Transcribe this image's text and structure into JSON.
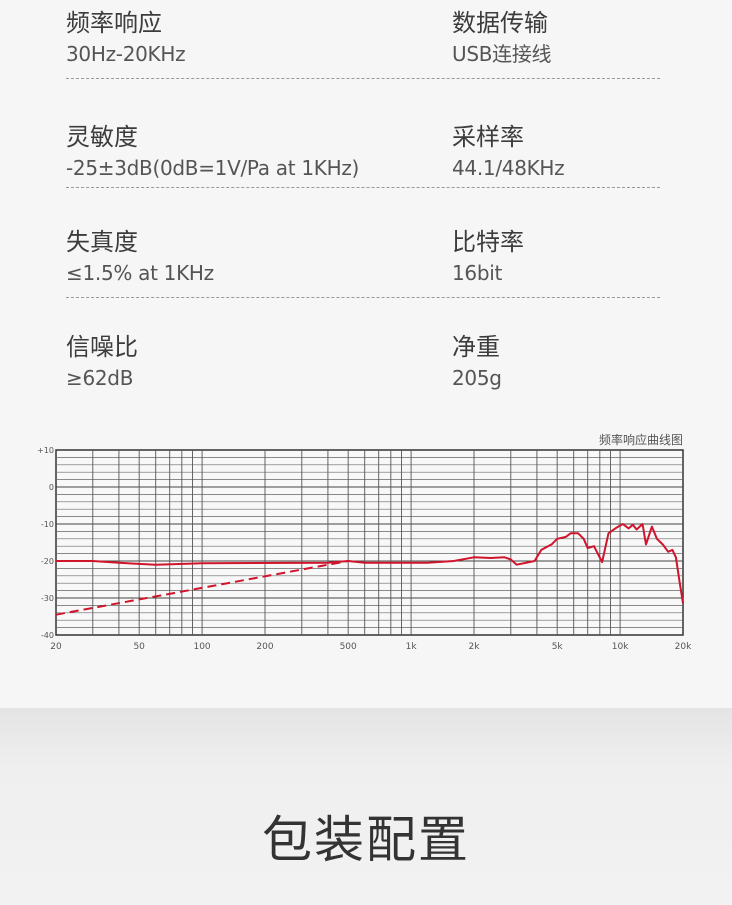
{
  "specs": [
    {
      "left": {
        "label": "频率响应",
        "value": "30Hz-20KHz"
      },
      "right": {
        "label": "数据传输",
        "value": "USB连接线"
      }
    },
    {
      "left": {
        "label": "灵敏度",
        "value": "-25±3dB(0dB=1V/Pa at 1KHz)"
      },
      "right": {
        "label": "采样率",
        "value": "44.1/48KHz"
      }
    },
    {
      "left": {
        "label": "失真度",
        "value": "≤1.5% at 1KHz"
      },
      "right": {
        "label": "比特率",
        "value": "16bit"
      }
    },
    {
      "left": {
        "label": "信噪比",
        "value": "≥62dB"
      },
      "right": {
        "label": "净重",
        "value": "205g"
      }
    }
  ],
  "section_title": "包装配置",
  "chart_data": {
    "type": "line",
    "title": "频率响应曲线图",
    "x_scale": "log",
    "xlim": [
      20,
      20000
    ],
    "ylim": [
      -40,
      10
    ],
    "grid": true,
    "x_ticks": [
      {
        "v": 20,
        "t": "20"
      },
      {
        "v": 50,
        "t": "50"
      },
      {
        "v": 100,
        "t": "100"
      },
      {
        "v": 200,
        "t": "200"
      },
      {
        "v": 500,
        "t": "500"
      },
      {
        "v": 1000,
        "t": "1k"
      },
      {
        "v": 2000,
        "t": "2k"
      },
      {
        "v": 5000,
        "t": "5k"
      },
      {
        "v": 10000,
        "t": "10k"
      },
      {
        "v": 20000,
        "t": "20k"
      }
    ],
    "y_ticks": [
      {
        "v": 10,
        "t": "+10"
      },
      {
        "v": 0,
        "t": "0"
      },
      {
        "v": -10,
        "t": "-10"
      },
      {
        "v": -20,
        "t": "-20"
      },
      {
        "v": -30,
        "t": "-30"
      },
      {
        "v": -40,
        "t": "-40"
      }
    ],
    "series": [
      {
        "style": "solid",
        "color": "#d0142c",
        "points": [
          [
            20,
            -20
          ],
          [
            30,
            -20
          ],
          [
            40,
            -20.5
          ],
          [
            60,
            -21
          ],
          [
            100,
            -20.6
          ],
          [
            400,
            -20.5
          ],
          [
            500,
            -20
          ],
          [
            600,
            -20.5
          ],
          [
            1000,
            -20.5
          ],
          [
            1200,
            -20.5
          ],
          [
            1600,
            -20
          ],
          [
            2000,
            -19
          ],
          [
            2400,
            -19.2
          ],
          [
            2800,
            -19
          ],
          [
            3000,
            -19.6
          ],
          [
            3200,
            -21
          ],
          [
            3600,
            -20.4
          ],
          [
            3900,
            -20
          ],
          [
            4200,
            -17
          ],
          [
            4700,
            -15.5
          ],
          [
            5000,
            -14
          ],
          [
            5500,
            -13.5
          ],
          [
            5800,
            -12.5
          ],
          [
            6300,
            -12.5
          ],
          [
            6700,
            -14
          ],
          [
            7000,
            -16.5
          ],
          [
            7500,
            -16
          ],
          [
            8200,
            -20.3
          ],
          [
            8800,
            -12.5
          ],
          [
            9600,
            -11
          ],
          [
            10300,
            -10
          ],
          [
            11000,
            -11.2
          ],
          [
            11500,
            -10.2
          ],
          [
            12000,
            -11.5
          ],
          [
            12800,
            -10
          ],
          [
            13300,
            -15.5
          ],
          [
            14200,
            -10.7
          ],
          [
            15000,
            -14
          ],
          [
            16000,
            -15.5
          ],
          [
            17000,
            -17.5
          ],
          [
            17800,
            -17
          ],
          [
            18500,
            -19
          ],
          [
            19300,
            -26
          ],
          [
            20000,
            -31.4
          ]
        ]
      },
      {
        "style": "dashed",
        "color": "#d0142c",
        "points": [
          [
            20,
            -34.5
          ],
          [
            500,
            -20
          ]
        ]
      }
    ]
  }
}
